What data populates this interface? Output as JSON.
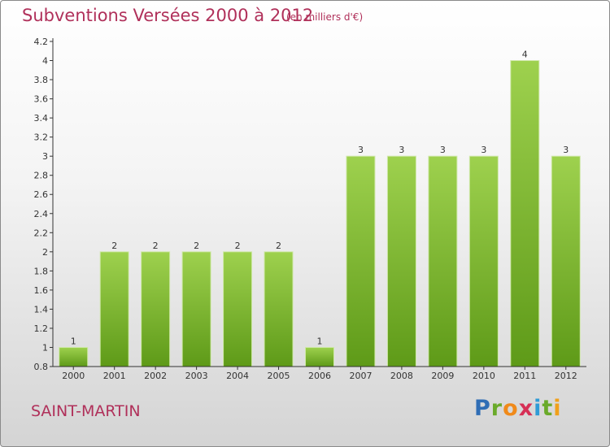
{
  "header": {
    "title": "Subventions Versées 2000 à 2012",
    "subtitle": "(en milliers d'€)"
  },
  "footer": {
    "commune": "SAINT-MARTIN",
    "logo_text": "Proxiti"
  },
  "colors": {
    "title": "#b0305a",
    "bar_top": "#9ed14e",
    "bar_bottom": "#5e9a18",
    "axis": "#333333"
  },
  "chart_data": {
    "type": "bar",
    "title": "Subventions Versées 2000 à 2012",
    "subtitle": "(en milliers d'€)",
    "xlabel": "",
    "ylabel": "",
    "categories": [
      "2000",
      "2001",
      "2002",
      "2003",
      "2004",
      "2005",
      "2006",
      "2007",
      "2008",
      "2009",
      "2010",
      "2011",
      "2012"
    ],
    "values": [
      1,
      2,
      2,
      2,
      2,
      2,
      1,
      3,
      3,
      3,
      3,
      4,
      3
    ],
    "data_labels": [
      "1",
      "2",
      "2",
      "2",
      "2",
      "2",
      "1",
      "3",
      "3",
      "3",
      "3",
      "4",
      "3"
    ],
    "ylim": [
      0.8,
      4.2
    ],
    "yticks": [
      0.8,
      1,
      1.2,
      1.4,
      1.6,
      1.8,
      2,
      2.2,
      2.4,
      2.6,
      2.8,
      3,
      3.2,
      3.4,
      3.6,
      3.8,
      4,
      4.2
    ],
    "ytick_labels": [
      "0.8",
      "1",
      "1.2",
      "1.4",
      "1.6",
      "1.8",
      "2",
      "2.2",
      "2.4",
      "2.6",
      "2.8",
      "3",
      "3.2",
      "3.4",
      "3.6",
      "3.8",
      "4",
      "4.2"
    ],
    "grid": false,
    "legend": "none"
  }
}
